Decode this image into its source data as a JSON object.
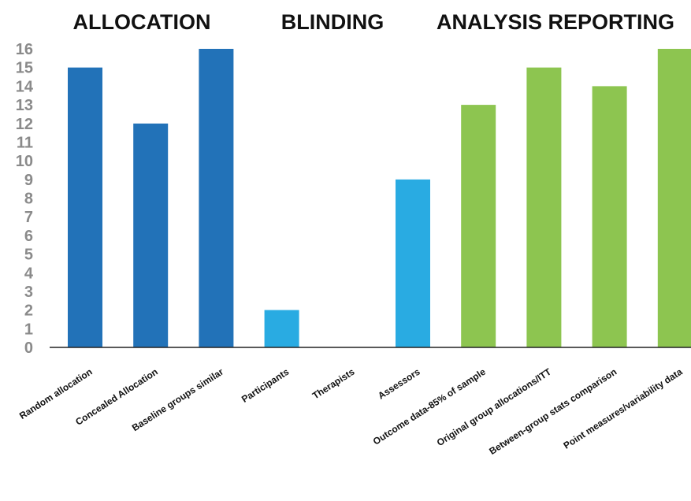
{
  "chart_data": {
    "type": "bar",
    "groups": [
      {
        "name": "ALLOCATION",
        "categories": [
          "Random allocation",
          "Concealed Allocation",
          "Baseline groups similar"
        ],
        "color": "#2272b8"
      },
      {
        "name": "BLINDING",
        "categories": [
          "Participants",
          "Therapists",
          "Assessors"
        ],
        "color": "#29abe2"
      },
      {
        "name": "ANALYSIS REPORTING",
        "categories": [
          "Outcome data-85% of sample",
          "Original group allocations/ITT",
          "Between-group stats comparison",
          "Point measures/variability data"
        ],
        "color": "#8dc550"
      }
    ],
    "categories": [
      "Random allocation",
      "Concealed Allocation",
      "Baseline groups similar",
      "Participants",
      "Therapists",
      "Assessors",
      "Outcome data-85% of sample",
      "Original group allocations/ITT",
      "Between-group stats comparison",
      "Point measures/variability data"
    ],
    "values": [
      15,
      12,
      16,
      2,
      0,
      9,
      13,
      15,
      14,
      16
    ],
    "bar_colors": [
      "#2272b8",
      "#2272b8",
      "#2272b8",
      "#29abe2",
      "#29abe2",
      "#29abe2",
      "#8dc550",
      "#8dc550",
      "#8dc550",
      "#8dc550"
    ],
    "ylim": [
      0,
      16
    ],
    "yticks": [
      "0",
      "1",
      "2",
      "3",
      "4",
      "5",
      "6",
      "7",
      "8",
      "9",
      "10",
      "11",
      "12",
      "13",
      "14",
      "15",
      "16"
    ],
    "grid": false,
    "legend": "none"
  }
}
